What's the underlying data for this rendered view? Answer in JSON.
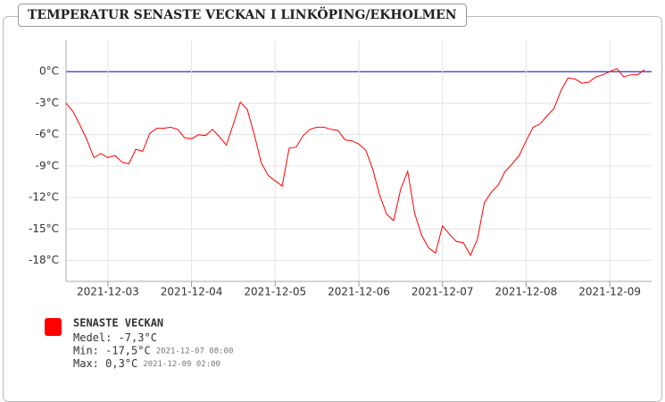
{
  "chart_data": {
    "type": "line",
    "title": "TEMPERATUR SENASTE VECKAN I LINKÖPING/EKHOLMEN",
    "series_name": "SENASTE VECKAN",
    "color": "#ff0000",
    "zero_line_color": "#3333cc",
    "grid": true,
    "x": [
      "2021-12-02 12:00",
      "2021-12-02 14:00",
      "2021-12-02 16:00",
      "2021-12-02 18:00",
      "2021-12-02 20:00",
      "2021-12-02 22:00",
      "2021-12-03 00:00",
      "2021-12-03 02:00",
      "2021-12-03 04:00",
      "2021-12-03 06:00",
      "2021-12-03 08:00",
      "2021-12-03 10:00",
      "2021-12-03 12:00",
      "2021-12-03 14:00",
      "2021-12-03 16:00",
      "2021-12-03 18:00",
      "2021-12-03 20:00",
      "2021-12-03 22:00",
      "2021-12-04 00:00",
      "2021-12-04 02:00",
      "2021-12-04 04:00",
      "2021-12-04 06:00",
      "2021-12-04 08:00",
      "2021-12-04 10:00",
      "2021-12-04 12:00",
      "2021-12-04 14:00",
      "2021-12-04 16:00",
      "2021-12-04 18:00",
      "2021-12-04 20:00",
      "2021-12-04 22:00",
      "2021-12-05 00:00",
      "2021-12-05 02:00",
      "2021-12-05 04:00",
      "2021-12-05 06:00",
      "2021-12-05 08:00",
      "2021-12-05 10:00",
      "2021-12-05 12:00",
      "2021-12-05 14:00",
      "2021-12-05 16:00",
      "2021-12-05 18:00",
      "2021-12-05 20:00",
      "2021-12-05 22:00",
      "2021-12-06 00:00",
      "2021-12-06 02:00",
      "2021-12-06 04:00",
      "2021-12-06 06:00",
      "2021-12-06 08:00",
      "2021-12-06 10:00",
      "2021-12-06 12:00",
      "2021-12-06 14:00",
      "2021-12-06 16:00",
      "2021-12-06 18:00",
      "2021-12-06 20:00",
      "2021-12-06 22:00",
      "2021-12-07 00:00",
      "2021-12-07 02:00",
      "2021-12-07 04:00",
      "2021-12-07 06:00",
      "2021-12-07 08:00",
      "2021-12-07 10:00",
      "2021-12-07 12:00",
      "2021-12-07 14:00",
      "2021-12-07 16:00",
      "2021-12-07 18:00",
      "2021-12-07 20:00",
      "2021-12-07 22:00",
      "2021-12-08 00:00",
      "2021-12-08 02:00",
      "2021-12-08 04:00",
      "2021-12-08 06:00",
      "2021-12-08 08:00",
      "2021-12-08 10:00",
      "2021-12-08 12:00",
      "2021-12-08 14:00",
      "2021-12-08 16:00",
      "2021-12-08 18:00",
      "2021-12-08 20:00",
      "2021-12-08 22:00",
      "2021-12-09 00:00",
      "2021-12-09 02:00",
      "2021-12-09 04:00",
      "2021-12-09 06:00",
      "2021-12-09 08:00",
      "2021-12-09 10:00"
    ],
    "values": [
      -3.0,
      -3.8,
      -5.1,
      -6.5,
      -8.2,
      -7.8,
      -8.2,
      -8.0,
      -8.6,
      -8.8,
      -7.4,
      -7.6,
      -5.9,
      -5.4,
      -5.4,
      -5.3,
      -5.5,
      -6.3,
      -6.4,
      -6.0,
      -6.1,
      -5.5,
      -6.2,
      -7.0,
      -5.0,
      -2.9,
      -3.6,
      -6.0,
      -8.7,
      -9.9,
      -10.4,
      -10.9,
      -7.3,
      -7.2,
      -6.1,
      -5.5,
      -5.3,
      -5.3,
      -5.5,
      -5.6,
      -6.5,
      -6.6,
      -6.9,
      -7.5,
      -9.3,
      -11.8,
      -13.6,
      -14.2,
      -11.2,
      -9.5,
      -13.5,
      -15.6,
      -16.8,
      -17.3,
      -14.7,
      -15.5,
      -16.2,
      -16.3,
      -17.5,
      -16.0,
      -12.5,
      -11.5,
      -10.8,
      -9.5,
      -8.8,
      -8.0,
      -6.6,
      -5.3,
      -5.0,
      -4.2,
      -3.5,
      -1.8,
      -0.6,
      -0.7,
      -1.1,
      -1.0,
      -0.5,
      -0.3,
      0.0,
      0.3,
      -0.5,
      -0.3,
      -0.3,
      0.2
    ],
    "xlim": [
      "2021-12-02 12:00",
      "2021-12-09 12:00"
    ],
    "xticks": [
      {
        "value": "2021-12-03 00:00",
        "label": "2021-12-03"
      },
      {
        "value": "2021-12-04 00:00",
        "label": "2021-12-04"
      },
      {
        "value": "2021-12-05 00:00",
        "label": "2021-12-05"
      },
      {
        "value": "2021-12-06 00:00",
        "label": "2021-12-06"
      },
      {
        "value": "2021-12-07 00:00",
        "label": "2021-12-07"
      },
      {
        "value": "2021-12-08 00:00",
        "label": "2021-12-08"
      },
      {
        "value": "2021-12-09 00:00",
        "label": "2021-12-09"
      }
    ],
    "ylim": [
      -20,
      3
    ],
    "yticks": [
      {
        "value": 0,
        "label": "0°C"
      },
      {
        "value": -3,
        "label": "-3°C"
      },
      {
        "value": -6,
        "label": "-6°C"
      },
      {
        "value": -9,
        "label": "-9°C"
      },
      {
        "value": -12,
        "label": "-12°C"
      },
      {
        "value": -15,
        "label": "-15°C"
      },
      {
        "value": -18,
        "label": "-18°C"
      }
    ],
    "stats": [
      {
        "text": "Medel: -7,3°C"
      },
      {
        "text": "Min: -17,5°C",
        "time": "2021-12-07 08:00"
      },
      {
        "text": "Max: 0,3°C",
        "time": "2021-12-09 02:00"
      }
    ]
  }
}
